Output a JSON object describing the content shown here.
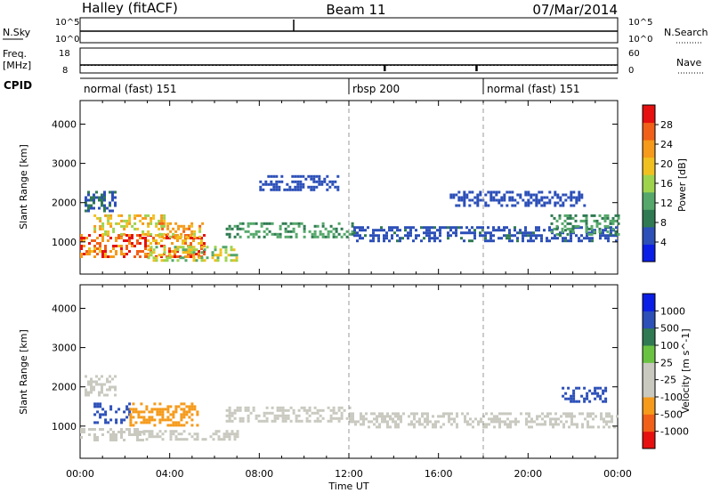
{
  "header": {
    "station": "Halley (fitACF)",
    "beam": "Beam 11",
    "date": "07/Mar/2014"
  },
  "noise_panel": {
    "left_label": "N.Sky",
    "left_ticks": [
      "10^5",
      "10^0"
    ],
    "right_label": "N.Search",
    "right_ticks": [
      "10^5",
      "10^0"
    ]
  },
  "freq_panel": {
    "left_label_1": "Freq.",
    "left_label_2": "[MHz]",
    "left_ticks": [
      "18",
      "8"
    ],
    "right_label": "Nave",
    "right_ticks": [
      "60",
      "0"
    ],
    "freq_mhz": 11.5,
    "nave": 20
  },
  "cpid": {
    "label": "CPID",
    "segments": [
      {
        "name": "normal (fast) 151",
        "start_h": 0,
        "end_h": 12
      },
      {
        "name": "rbsp 200",
        "start_h": 12,
        "end_h": 18
      },
      {
        "name": "normal (fast) 151",
        "start_h": 18,
        "end_h": 24
      }
    ]
  },
  "colors": {
    "power": [
      "#0b1ee6",
      "#2c4fb8",
      "#2f7a52",
      "#55a86a",
      "#9ed34e",
      "#f0c020",
      "#f59a1a",
      "#f06018",
      "#e61010"
    ],
    "velocity": [
      "#e61010",
      "#f06018",
      "#f59a1a",
      "#c9c9c0",
      "#c9c9c0",
      "#6ac242",
      "#2f7a52",
      "#2c4fb8",
      "#0b1ee6"
    ]
  },
  "chart_data": [
    {
      "type": "heatmap",
      "name": "power",
      "ylabel": "Slant Range [km]",
      "yticks": [
        1000,
        2000,
        3000,
        4000
      ],
      "ylim": [
        180,
        4600
      ],
      "xlim": [
        0,
        24
      ],
      "colorbar_label": "Power [dB]",
      "colorbar_ticks": [
        4,
        8,
        12,
        16,
        20,
        24,
        28
      ],
      "colorbar_range": [
        0,
        32
      ],
      "echo_bands": [
        {
          "t0": 0.0,
          "t1": 5.5,
          "r0": 650,
          "r1": 1200,
          "value": 26
        },
        {
          "t0": 0.6,
          "t1": 3.8,
          "r0": 1200,
          "r1": 1700,
          "value": 19
        },
        {
          "t0": 3.5,
          "t1": 5.5,
          "r0": 1100,
          "r1": 1500,
          "value": 22
        },
        {
          "t0": 3.0,
          "t1": 7.0,
          "r0": 500,
          "r1": 900,
          "value": 17
        },
        {
          "t0": 0.2,
          "t1": 1.6,
          "r0": 1800,
          "r1": 2300,
          "value": 7
        },
        {
          "t0": 6.5,
          "t1": 12.2,
          "r0": 1100,
          "r1": 1500,
          "value": 11
        },
        {
          "t0": 8.0,
          "t1": 11.5,
          "r0": 2300,
          "r1": 2700,
          "value": 5
        },
        {
          "t0": 12.2,
          "t1": 24.0,
          "r0": 1000,
          "r1": 1400,
          "value": 6
        },
        {
          "t0": 21.0,
          "t1": 24.0,
          "r0": 1200,
          "r1": 1700,
          "value": 11
        },
        {
          "t0": 16.5,
          "t1": 22.5,
          "r0": 1900,
          "r1": 2300,
          "value": 5
        }
      ]
    },
    {
      "type": "heatmap",
      "name": "velocity",
      "ylabel": "Slant Range [km]",
      "yticks": [
        1000,
        2000,
        3000,
        4000
      ],
      "ylim": [
        180,
        4600
      ],
      "xlim": [
        0,
        24
      ],
      "xlabel": "Time UT",
      "xticks": [
        "00:00",
        "04:00",
        "08:00",
        "12:00",
        "16:00",
        "20:00",
        "00:00"
      ],
      "colorbar_label": "Velocity [m s^-1]",
      "colorbar_ticks": [
        "1000",
        "500",
        "100",
        "25",
        "-25",
        "-100",
        "-500",
        "-1000"
      ],
      "echo_bands": [
        {
          "t0": 0.0,
          "t1": 2.8,
          "r0": 650,
          "r1": 950,
          "value": 0
        },
        {
          "t0": 2.8,
          "t1": 7.0,
          "r0": 650,
          "r1": 900,
          "value": 0
        },
        {
          "t0": 0.6,
          "t1": 2.2,
          "r0": 1100,
          "r1": 1600,
          "value": 300
        },
        {
          "t0": 2.2,
          "t1": 5.2,
          "r0": 1000,
          "r1": 1600,
          "value": -150
        },
        {
          "t0": 6.5,
          "t1": 12.0,
          "r0": 1100,
          "r1": 1500,
          "value": 0
        },
        {
          "t0": 12.0,
          "t1": 24.0,
          "r0": 1000,
          "r1": 1350,
          "value": 0
        },
        {
          "t0": 21.5,
          "t1": 23.5,
          "r0": 1600,
          "r1": 2000,
          "value": 200
        },
        {
          "t0": 0.2,
          "t1": 1.6,
          "r0": 1800,
          "r1": 2300,
          "value": 0
        }
      ]
    }
  ]
}
